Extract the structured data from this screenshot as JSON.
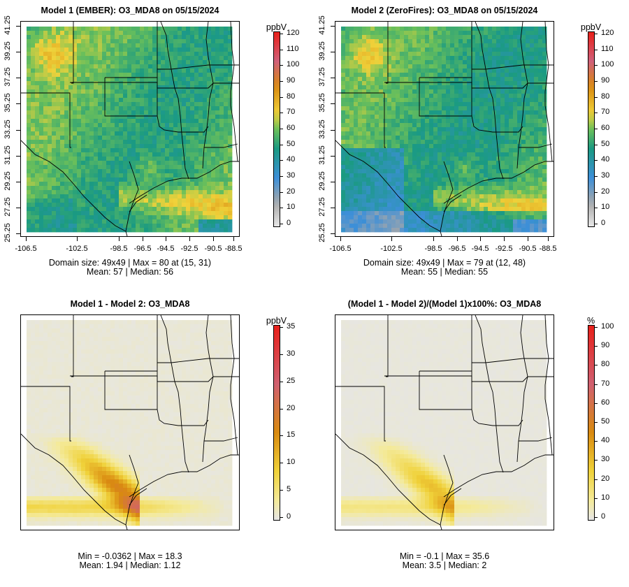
{
  "panels": [
    {
      "title": "Model 1 (EMBER): O3_MDA8 on 05/15/2024",
      "unit": "ppbV",
      "scale_max": 120,
      "scale_labels": [
        "120",
        "110",
        "100",
        "90",
        "80",
        "70",
        "60",
        "50",
        "40",
        "30",
        "20",
        "10",
        "0"
      ],
      "stats_line1": "Domain size: 49x49 | Max = 80 at (15, 31)",
      "stats_line2": "Mean: 57 |  Median: 56",
      "show_axes": true
    },
    {
      "title": "Model 2 (ZeroFires): O3_MDA8 on 05/15/2024",
      "unit": "ppbV",
      "scale_max": 120,
      "scale_labels": [
        "120",
        "110",
        "100",
        "90",
        "80",
        "70",
        "60",
        "50",
        "40",
        "30",
        "20",
        "10",
        "0"
      ],
      "stats_line1": "Domain size: 49x49 | Max = 79 at (12, 48)",
      "stats_line2": "Mean: 55 |  Median: 55",
      "show_axes": true
    },
    {
      "title": "Model 1 - Model 2: O3_MDA8",
      "unit": "ppbV",
      "scale_max": 35,
      "scale_labels": [
        "35",
        "30",
        "25",
        "20",
        "15",
        "10",
        "5",
        "0"
      ],
      "stats_line1": "Min = -0.0362 | Max = 18.3",
      "stats_line2": "Mean: 1.94 |  Median: 1.12",
      "show_axes": false
    },
    {
      "title": "(Model 1 - Model 2)/(Model 1)x100%: O3_MDA8",
      "unit": "%",
      "scale_max": 100,
      "scale_labels": [
        "100",
        "90",
        "80",
        "70",
        "60",
        "50",
        "40",
        "30",
        "20",
        "10",
        "0"
      ],
      "stats_line1": "Min = -0.1 | Max = 35.6",
      "stats_line2": "Mean: 3.5 |  Median: 2",
      "show_axes": false
    }
  ],
  "axes": {
    "y_ticks": [
      "41.25",
      "39.25",
      "37.25",
      "35.25",
      "33.25",
      "31.25",
      "29.25",
      "27.25",
      "25.25"
    ],
    "x_ticks": [
      "-106.5",
      "-102.5",
      "-98.5",
      "-96.5",
      "-94.5",
      "-92.5",
      "-90.5",
      "-88.5"
    ]
  },
  "colors": {
    "blue": "#3d8fd8",
    "teal": "#1a9a82",
    "green": "#6cc05a",
    "yellow": "#f0d23a",
    "orange": "#d98a10",
    "red": "#e8201a",
    "grey": "#e6e6e6"
  }
}
